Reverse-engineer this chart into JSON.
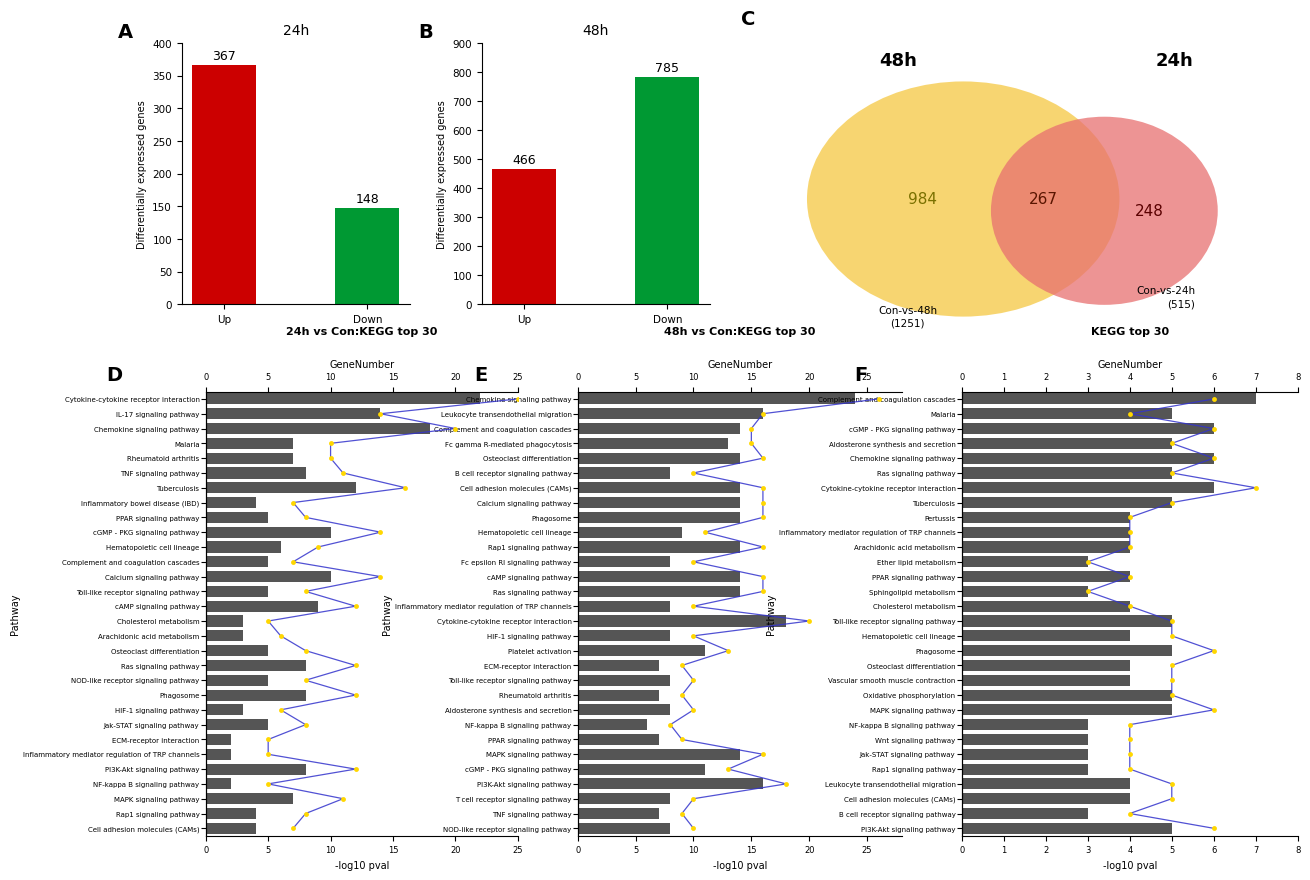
{
  "panel_A": {
    "title": "24h",
    "categories": [
      "Up",
      "Down"
    ],
    "values": [
      367,
      148
    ],
    "colors": [
      "#cc0000",
      "#009933"
    ],
    "ylabel": "Differentially expressed genes",
    "ylim": [
      0,
      400
    ],
    "yticks": [
      0,
      50,
      100,
      150,
      200,
      250,
      300,
      350,
      400
    ]
  },
  "panel_B": {
    "title": "48h",
    "categories": [
      "Up",
      "Down"
    ],
    "values": [
      466,
      785
    ],
    "colors": [
      "#cc0000",
      "#009933"
    ],
    "ylabel": "Differentially expressed genes",
    "ylim": [
      0,
      900
    ],
    "yticks": [
      0,
      100,
      200,
      300,
      400,
      500,
      600,
      700,
      800,
      900
    ]
  },
  "panel_C": {
    "label_48h": "48h",
    "label_24h": "24h",
    "val_only_48h": "984",
    "val_shared": "267",
    "val_only_24h": "248",
    "subtitle_48h": "Con-vs-48h\n(1251)",
    "subtitle_24h": "Con-vs-24h\n(515)"
  },
  "panel_D": {
    "title": "24h vs Con:KEGG top 30",
    "pathways": [
      "Cytokine-cytokine receptor interaction",
      "IL-17 signaling pathway",
      "Chemokine signaling pathway",
      "Malaria",
      "Rheumatoid arthritis",
      "TNF signaling pathway",
      "Tuberculosis",
      "Inflammatory bowel disease (IBD)",
      "PPAR signaling pathway",
      "cGMP - PKG signaling pathway",
      "Hematopoietic cell lineage",
      "Complement and coagulation cascades",
      "Calcium signaling pathway",
      "Toll-like receptor signaling pathway",
      "cAMP signaling pathway",
      "Cholesterol metabolism",
      "Arachidonic acid metabolism",
      "Osteoclast differentiation",
      "Ras signaling pathway",
      "NOD-like receptor signaling pathway",
      "Phagosome",
      "HIF-1 signaling pathway",
      "Jak-STAT signaling pathway",
      "ECM-receptor interaction",
      "Inflammatory mediator regulation of TRP channels",
      "PI3K-Akt signaling pathway",
      "NF-kappa B signaling pathway",
      "MAPK signaling pathway",
      "Rap1 signaling pathway",
      "Cell adhesion molecules (CAMs)"
    ],
    "gene_numbers": [
      25,
      14,
      20,
      10,
      10,
      11,
      16,
      7,
      8,
      14,
      9,
      7,
      14,
      8,
      12,
      5,
      6,
      8,
      12,
      8,
      12,
      6,
      8,
      5,
      5,
      12,
      5,
      11,
      8,
      7
    ],
    "pvalues": [
      22,
      14,
      18,
      7,
      7,
      8,
      12,
      4,
      5,
      10,
      6,
      5,
      10,
      5,
      9,
      3,
      3,
      5,
      8,
      5,
      8,
      3,
      5,
      2,
      2,
      8,
      2,
      7,
      4,
      4
    ],
    "xlim_pval": 25,
    "xlim_gene": 25,
    "xlabel": "-log10 pval",
    "xlabel2": "GeneNumber"
  },
  "panel_E": {
    "title": "48h vs Con:KEGG top 30",
    "pathways": [
      "Chemokine signaling pathway",
      "Leukocyte transendothelial migration",
      "Complement and coagulation cascades",
      "Fc gamma R-mediated phagocytosis",
      "Osteoclast differentiation",
      "B cell receptor signaling pathway",
      "Cell adhesion molecules (CAMs)",
      "Calcium signaling pathway",
      "Phagosome",
      "Hematopoietic cell lineage",
      "Rap1 signaling pathway",
      "Fc epsilon RI signaling pathway",
      "cAMP signaling pathway",
      "Ras signaling pathway",
      "Inflammatory mediator regulation of TRP channels",
      "Cytokine-cytokine receptor interaction",
      "HIF-1 signaling pathway",
      "Platelet activation",
      "ECM-receptor interaction",
      "Toll-like receptor signaling pathway",
      "Rheumatoid arthritis",
      "Aldosterone synthesis and secretion",
      "NF-kappa B signaling pathway",
      "PPAR signaling pathway",
      "MAPK signaling pathway",
      "cGMP - PKG signaling pathway",
      "PI3K-Akt signaling pathway",
      "T cell receptor signaling pathway",
      "TNF signaling pathway",
      "NOD-like receptor signaling pathway"
    ],
    "gene_numbers": [
      26,
      16,
      15,
      15,
      16,
      10,
      16,
      16,
      16,
      11,
      16,
      10,
      16,
      16,
      10,
      20,
      10,
      13,
      9,
      10,
      9,
      10,
      8,
      9,
      16,
      13,
      18,
      10,
      9,
      10
    ],
    "pvalues": [
      24,
      16,
      14,
      13,
      14,
      8,
      14,
      14,
      14,
      9,
      14,
      8,
      14,
      14,
      8,
      18,
      8,
      11,
      7,
      8,
      7,
      8,
      6,
      7,
      14,
      11,
      16,
      8,
      7,
      8
    ],
    "xlim_pval": 28,
    "xlim_gene": 28,
    "xlabel": "-log10 pval",
    "xlabel2": "GeneNumber"
  },
  "panel_F": {
    "title": "KEGG top 30",
    "pathways": [
      "Complement and coagulation cascades",
      "Malaria",
      "cGMP - PKG signaling pathway",
      "Aldosterone synthesis and secretion",
      "Chemokine signaling pathway",
      "Ras signaling pathway",
      "Cytokine-cytokine receptor interaction",
      "Tuberculosis",
      "Pertussis",
      "Inflammatory mediator regulation of TRP channels",
      "Arachidonic acid metabolism",
      "Ether lipid metabolism",
      "PPAR signaling pathway",
      "Sphingolipid metabolism",
      "Cholesterol metabolism",
      "Toll-like receptor signaling pathway",
      "Hematopoietic cell lineage",
      "Phagosome",
      "Osteoclast differentiation",
      "Vascular smooth muscle contraction",
      "Oxidative phosphorylation",
      "MAPK signaling pathway",
      "NF-kappa B signaling pathway",
      "Wnt signaling pathway",
      "Jak-STAT signaling pathway",
      "Rap1 signaling pathway",
      "Leukocyte transendothelial migration",
      "Cell adhesion molecules (CAMs)",
      "B cell receptor signaling pathway",
      "PI3K-Akt signaling pathway"
    ],
    "gene_numbers": [
      6,
      4,
      6,
      5,
      6,
      5,
      7,
      5,
      4,
      4,
      4,
      3,
      4,
      3,
      4,
      5,
      5,
      6,
      5,
      5,
      5,
      6,
      4,
      4,
      4,
      4,
      5,
      5,
      4,
      6
    ],
    "pvalues": [
      7,
      5,
      6,
      5,
      6,
      5,
      6,
      5,
      4,
      4,
      4,
      3,
      4,
      3,
      4,
      5,
      4,
      5,
      4,
      4,
      5,
      5,
      3,
      3,
      3,
      3,
      4,
      4,
      3,
      5
    ],
    "xlim_pval": 8,
    "xlim_gene": 8,
    "xlabel": "-log10 pval",
    "xlabel2": "GeneNumber"
  }
}
